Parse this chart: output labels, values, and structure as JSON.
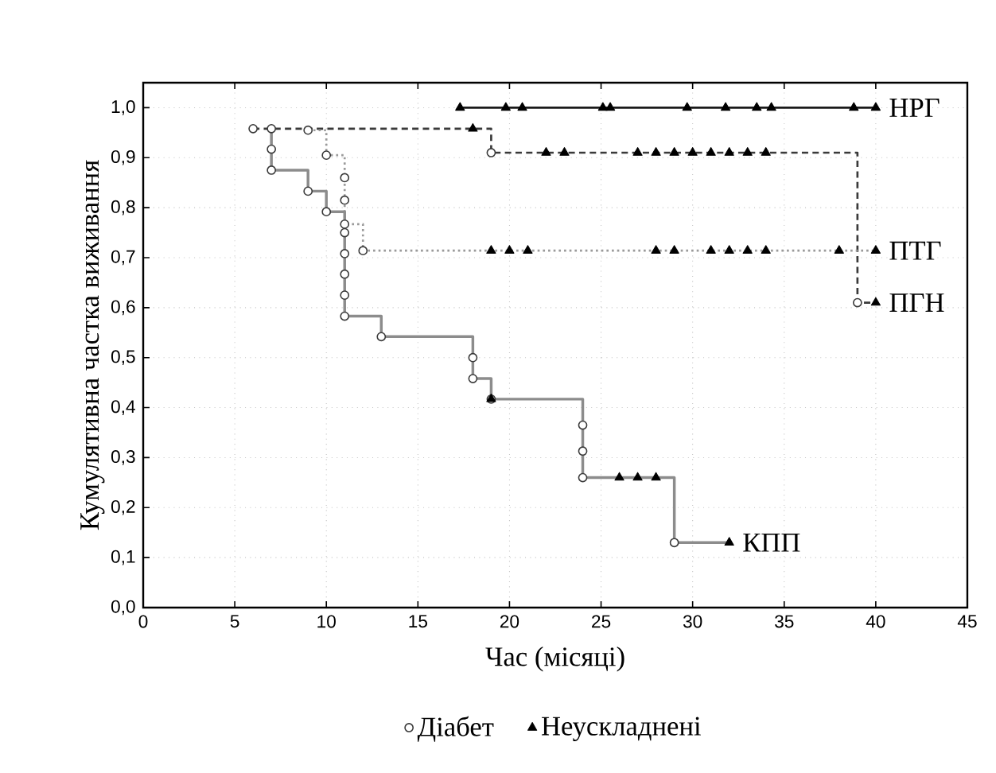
{
  "chart_data": {
    "type": "step",
    "xlabel": "Час (місяці)",
    "ylabel": "Кумулятивна частка виживання",
    "xlim": [
      0,
      45
    ],
    "ylim": [
      0,
      1.05
    ],
    "xticks": [
      0,
      5,
      10,
      15,
      20,
      25,
      30,
      35,
      40,
      45
    ],
    "yticks": [
      {
        "value": 0,
        "label": "0,0"
      },
      {
        "value": 0.1,
        "label": "0,1"
      },
      {
        "value": 0.2,
        "label": "0,2"
      },
      {
        "value": 0.3,
        "label": "0,3"
      },
      {
        "value": 0.4,
        "label": "0,4"
      },
      {
        "value": 0.5,
        "label": "0,5"
      },
      {
        "value": 0.6,
        "label": "0,6"
      },
      {
        "value": 0.7,
        "label": "0,7"
      },
      {
        "value": 0.8,
        "label": "0,8"
      },
      {
        "value": 0.9,
        "label": "0,9"
      },
      {
        "value": 1.0,
        "label": "1,0"
      }
    ],
    "grid": true,
    "legend": "bottom",
    "series": [
      {
        "name": "НРГ",
        "color": "#1a1a1a",
        "line_style": "solid",
        "marker": "none",
        "x": [
          17.3,
          40
        ],
        "values": [
          1.0,
          1.0
        ]
      },
      {
        "name": "ПГН",
        "color": "#3a3a3a",
        "line_style": "dashed",
        "marker": "none",
        "x": [
          6,
          19,
          39,
          40
        ],
        "values": [
          0.958,
          0.91,
          0.61,
          0.61
        ]
      },
      {
        "name": "ПТГ",
        "color": "#9a9a9a",
        "line_style": "dotted",
        "marker": "none",
        "x": [
          9,
          10,
          11,
          12,
          40
        ],
        "values": [
          0.955,
          0.905,
          0.767,
          0.714,
          0.714
        ]
      },
      {
        "name": "КПП",
        "color": "#8c8c8c",
        "line_style": "solid",
        "marker": "none",
        "x": [
          7,
          7,
          9,
          10,
          11,
          13,
          18,
          19,
          24,
          29,
          32
        ],
        "values": [
          0.958,
          0.875,
          0.833,
          0.792,
          0.583,
          0.542,
          0.458,
          0.417,
          0.26,
          0.13,
          0.13
        ]
      },
      {
        "name": "Діабет",
        "type": "scatter",
        "color": "#3a3a3a",
        "marker": "circle",
        "x": [
          6,
          7,
          7,
          7,
          9,
          9,
          10,
          10,
          11,
          11,
          11,
          11,
          11,
          11,
          11,
          11,
          12,
          13,
          18,
          18,
          19,
          19,
          24,
          24,
          24,
          29,
          39
        ],
        "values": [
          0.958,
          0.958,
          0.917,
          0.875,
          0.955,
          0.833,
          0.905,
          0.792,
          0.86,
          0.815,
          0.767,
          0.75,
          0.708,
          0.667,
          0.625,
          0.583,
          0.714,
          0.542,
          0.5,
          0.458,
          0.91,
          0.417,
          0.365,
          0.313,
          0.26,
          0.13,
          0.61
        ]
      },
      {
        "name": "Неускладнені",
        "type": "scatter",
        "color": "#000000",
        "marker": "triangle",
        "x": [
          17.3,
          19.8,
          20.7,
          25.1,
          25.5,
          29.7,
          31.8,
          33.5,
          34.3,
          38.8,
          40,
          18,
          22,
          23,
          27,
          28,
          29,
          30,
          31,
          32,
          33,
          34,
          40,
          19,
          20,
          21,
          28,
          29,
          31,
          32,
          33,
          34,
          38,
          40,
          19,
          26,
          27,
          28,
          32
        ],
        "values": [
          1.0,
          1.0,
          1.0,
          1.0,
          1.0,
          1.0,
          1.0,
          1.0,
          1.0,
          1.0,
          1.0,
          0.958,
          0.91,
          0.91,
          0.91,
          0.91,
          0.91,
          0.91,
          0.91,
          0.91,
          0.91,
          0.91,
          0.61,
          0.714,
          0.714,
          0.714,
          0.714,
          0.714,
          0.714,
          0.714,
          0.714,
          0.714,
          0.714,
          0.714,
          0.417,
          0.26,
          0.26,
          0.26,
          0.13
        ]
      }
    ]
  }
}
